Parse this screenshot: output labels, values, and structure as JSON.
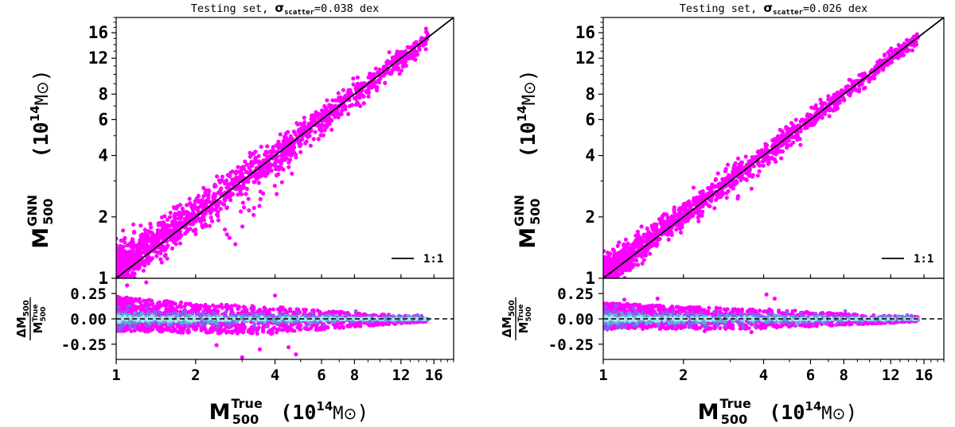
{
  "chart_data": [
    {
      "type": "scatter",
      "panel": "left",
      "title_prefix": "Testing set, ",
      "title_sigma": "σ",
      "title_sigma_sub": "scatter",
      "title_suffix": "=0.038 dex",
      "scatter_value_dex": 0.038,
      "xlabel": {
        "main": "M",
        "sup": "True",
        "sub": "500",
        "unit": "(10",
        "unit_exp": "14",
        "unit_rest": "M",
        "unit_sym": "⊙",
        "unit_close": ")"
      },
      "ylabel": {
        "main": "M",
        "sup": "GNN",
        "sub": "500",
        "unit": "(10",
        "unit_exp": "14",
        "unit_rest": "M",
        "unit_sym": "⊙",
        "unit_close": ")"
      },
      "xscale": "log",
      "yscale": "log",
      "xlim": [
        1,
        19
      ],
      "ylim": [
        1,
        19
      ],
      "xticks": [
        1,
        2,
        4,
        6,
        8,
        12,
        16
      ],
      "yticks": [
        1,
        2,
        4,
        6,
        8,
        12,
        16
      ],
      "legend": {
        "label": "1:1",
        "placement": "lower-right"
      },
      "reference_line": "y = x",
      "series": [
        {
          "name": "predictions",
          "color": "#ff00ff",
          "x": [
            1.0,
            1.05,
            1.1,
            1.15,
            1.2,
            1.3,
            1.4,
            1.5,
            1.7,
            1.9,
            2.1,
            2.4,
            2.7,
            3.0,
            3.4,
            3.8,
            4.2,
            4.6,
            5.0,
            5.6,
            6.3,
            7.0,
            8.0,
            9.0,
            10.0,
            11.5,
            13.0,
            14.5,
            15.0
          ],
          "y": [
            1.12,
            1.18,
            1.2,
            1.25,
            1.3,
            1.38,
            1.48,
            1.58,
            1.76,
            1.95,
            2.16,
            2.45,
            2.72,
            3.05,
            3.42,
            3.8,
            4.18,
            4.55,
            5.0,
            5.55,
            6.25,
            6.95,
            7.95,
            8.95,
            9.9,
            11.4,
            12.8,
            14.3,
            15.0
          ]
        },
        {
          "name": "outliers",
          "color": "#ff00ff",
          "x": [
            2.8,
            3.0,
            3.2,
            3.4,
            3.7,
            4.0,
            4.2,
            4.5,
            4.7
          ],
          "y": [
            1.6,
            1.8,
            2.1,
            2.4,
            2.6,
            3.0,
            3.3,
            3.6,
            3.9
          ]
        }
      ],
      "residual": {
        "ylabel": {
          "num": "ΔM",
          "num_sub": "500",
          "den": "M",
          "den_sup": "True",
          "den_sub": "500"
        },
        "ylim": [
          -0.4,
          0.4
        ],
        "yticks": [
          0.25,
          0.0,
          -0.25
        ],
        "yticklabels": [
          "0.25",
          "0.00",
          "-0.25"
        ],
        "zero_line": "dashed",
        "spread_at_x": [
          1,
          2,
          4,
          8,
          15
        ],
        "spread_upper": [
          0.22,
          0.15,
          0.12,
          0.06,
          0.02
        ],
        "spread_lower": [
          -0.12,
          -0.14,
          -0.15,
          -0.08,
          -0.03
        ],
        "outlier_points": [
          {
            "x": 1.1,
            "y": 0.33
          },
          {
            "x": 1.3,
            "y": 0.36
          },
          {
            "x": 3.5,
            "y": -0.3
          },
          {
            "x": 4.8,
            "y": -0.35
          },
          {
            "x": 4.5,
            "y": -0.28
          },
          {
            "x": 4.0,
            "y": 0.23
          },
          {
            "x": 2.4,
            "y": -0.26
          },
          {
            "x": 3.0,
            "y": -0.38
          }
        ],
        "colors": [
          "#ff00ff",
          "#8a5cf0",
          "#5fa8d3",
          "#9fe3ee"
        ]
      }
    },
    {
      "type": "scatter",
      "panel": "right",
      "title_prefix": "Testing set, ",
      "title_sigma": "σ",
      "title_sigma_sub": "scatter",
      "title_suffix": "=0.026 dex",
      "scatter_value_dex": 0.026,
      "xlabel": {
        "main": "M",
        "sup": "True",
        "sub": "500",
        "unit": "(10",
        "unit_exp": "14",
        "unit_rest": "M",
        "unit_sym": "⊙",
        "unit_close": ")"
      },
      "ylabel": {
        "main": "M",
        "sup": "GNN",
        "sub": "500",
        "unit": "(10",
        "unit_exp": "14",
        "unit_rest": "M",
        "unit_sym": "⊙",
        "unit_close": ")"
      },
      "xscale": "log",
      "yscale": "log",
      "xlim": [
        1,
        19
      ],
      "ylim": [
        1,
        19
      ],
      "xticks": [
        1,
        2,
        4,
        6,
        8,
        12,
        16
      ],
      "yticks": [
        1,
        2,
        4,
        6,
        8,
        12,
        16
      ],
      "legend": {
        "label": "1:1",
        "placement": "lower-right"
      },
      "reference_line": "y = x",
      "series": [
        {
          "name": "predictions",
          "color": "#ff00ff",
          "x": [
            1.0,
            1.05,
            1.1,
            1.15,
            1.2,
            1.3,
            1.4,
            1.5,
            1.7,
            1.9,
            2.1,
            2.4,
            2.7,
            3.0,
            3.4,
            3.8,
            4.2,
            4.6,
            5.0,
            5.6,
            6.3,
            7.0,
            8.0,
            9.0,
            10.0,
            11.5,
            13.0,
            14.5,
            15.0
          ],
          "y": [
            1.08,
            1.12,
            1.16,
            1.21,
            1.26,
            1.35,
            1.46,
            1.56,
            1.75,
            1.94,
            2.14,
            2.44,
            2.72,
            3.03,
            3.42,
            3.8,
            4.2,
            4.6,
            5.0,
            5.6,
            6.28,
            6.98,
            7.96,
            8.95,
            9.95,
            11.45,
            12.9,
            14.4,
            15.0
          ]
        },
        {
          "name": "outliers",
          "color": "#ff00ff",
          "x": [
            3.0,
            3.6,
            4.1,
            4.4,
            5.2
          ],
          "y": [
            2.6,
            3.2,
            3.6,
            3.9,
            4.7
          ]
        }
      ],
      "residual": {
        "ylabel": {
          "num": "ΔM",
          "num_sub": "500",
          "den": "M",
          "den_sup": "True",
          "den_sub": "500"
        },
        "ylim": [
          -0.4,
          0.4
        ],
        "yticks": [
          0.25,
          0.0,
          -0.25
        ],
        "yticklabels": [
          "0.25",
          "0.00",
          "-0.25"
        ],
        "zero_line": "dashed",
        "spread_at_x": [
          1,
          2,
          4,
          8,
          15
        ],
        "spread_upper": [
          0.16,
          0.12,
          0.1,
          0.05,
          0.02
        ],
        "spread_lower": [
          -0.1,
          -0.1,
          -0.1,
          -0.06,
          -0.03
        ],
        "outlier_points": [
          {
            "x": 1.6,
            "y": 0.2
          },
          {
            "x": 4.1,
            "y": 0.24
          },
          {
            "x": 4.4,
            "y": 0.2
          },
          {
            "x": 3.6,
            "y": -0.13
          },
          {
            "x": 2.4,
            "y": -0.12
          },
          {
            "x": 1.2,
            "y": 0.19
          }
        ],
        "colors": [
          "#ff00ff",
          "#8a5cf0",
          "#5fa8d3",
          "#9fe3ee"
        ]
      }
    }
  ]
}
